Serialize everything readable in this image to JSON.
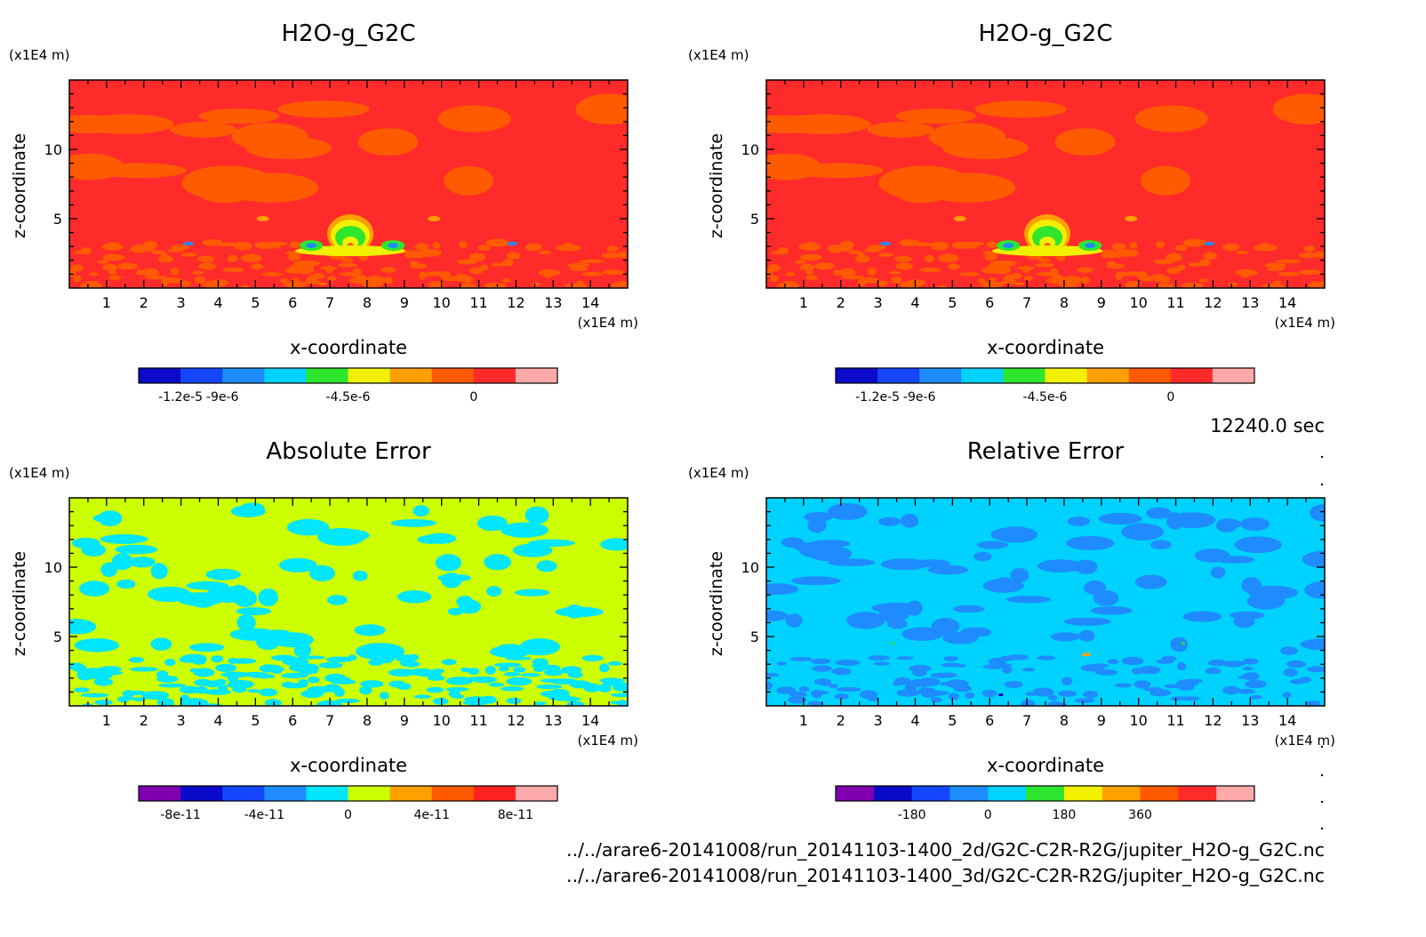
{
  "time_label": "12240.0 sec",
  "files": [
    "../../arare6-20141008/run_20141103-1400_2d/G2C-C2R-R2G/jupiter_H2O-g_G2C.nc",
    "../../arare6-20141008/run_20141103-1400_3d/G2C-C2R-R2G/jupiter_H2O-g_G2C.nc"
  ],
  "chart_data": [
    {
      "type": "heatmap",
      "title": "H2O-g_G2C",
      "xlabel": "x-coordinate",
      "ylabel": "z-coordinate",
      "x_unit": "(x1E4 m)",
      "y_unit": "(x1E4 m)",
      "xlim": [
        0,
        15
      ],
      "ylim": [
        0,
        15
      ],
      "x_ticks": [
        "1",
        "2",
        "3",
        "4",
        "5",
        "6",
        "7",
        "8",
        "9",
        "10",
        "11",
        "12",
        "13",
        "14"
      ],
      "y_ticks": [
        "5",
        "10"
      ],
      "background_color": "#ff2b2b",
      "colorbar": {
        "colors": [
          "#0a0ac8",
          "#1446ff",
          "#1e8cff",
          "#00d2ff",
          "#2ee62e",
          "#f0f000",
          "#ffa000",
          "#ff5a00",
          "#ff2b2b",
          "#ffaaaa"
        ],
        "labels": [
          "-1.2e-5",
          "-9e-6",
          "-4.5e-6",
          "0"
        ]
      }
    },
    {
      "type": "heatmap",
      "title": "H2O-g_G2C",
      "xlabel": "x-coordinate",
      "ylabel": "z-coordinate",
      "x_unit": "(x1E4 m)",
      "y_unit": "(x1E4 m)",
      "xlim": [
        0,
        15
      ],
      "ylim": [
        0,
        15
      ],
      "x_ticks": [
        "1",
        "2",
        "3",
        "4",
        "5",
        "6",
        "7",
        "8",
        "9",
        "10",
        "11",
        "12",
        "13",
        "14"
      ],
      "y_ticks": [
        "5",
        "10"
      ],
      "background_color": "#ff2b2b",
      "colorbar": {
        "colors": [
          "#0a0ac8",
          "#1446ff",
          "#1e8cff",
          "#00d2ff",
          "#2ee62e",
          "#f0f000",
          "#ffa000",
          "#ff5a00",
          "#ff2b2b",
          "#ffaaaa"
        ],
        "labels": [
          "-1.2e-5",
          "-9e-6",
          "-4.5e-6",
          "0"
        ]
      }
    },
    {
      "type": "heatmap",
      "title": "Absolute Error",
      "xlabel": "x-coordinate",
      "ylabel": "z-coordinate",
      "x_unit": "(x1E4 m)",
      "y_unit": "(x1E4 m)",
      "xlim": [
        0,
        15
      ],
      "ylim": [
        0,
        15
      ],
      "x_ticks": [
        "1",
        "2",
        "3",
        "4",
        "5",
        "6",
        "7",
        "8",
        "9",
        "10",
        "11",
        "12",
        "13",
        "14"
      ],
      "y_ticks": [
        "5",
        "10"
      ],
      "background_color": "#ccff00",
      "colorbar": {
        "colors": [
          "#8000b0",
          "#0a0ac8",
          "#1446ff",
          "#1e8cff",
          "#00e6ff",
          "#ccff00",
          "#ffa000",
          "#ff5a00",
          "#ff2020",
          "#ffaaaa"
        ],
        "labels": [
          "-8e-11",
          "-4e-11",
          "0",
          "4e-11",
          "8e-11"
        ]
      }
    },
    {
      "type": "heatmap",
      "title": "Relative Error",
      "xlabel": "x-coordinate",
      "ylabel": "z-coordinate",
      "x_unit": "(x1E4 m)",
      "y_unit": "(x1E4 m)",
      "xlim": [
        0,
        15
      ],
      "ylim": [
        0,
        15
      ],
      "x_ticks": [
        "1",
        "2",
        "3",
        "4",
        "5",
        "6",
        "7",
        "8",
        "9",
        "10",
        "11",
        "12",
        "13",
        "14"
      ],
      "y_ticks": [
        "5",
        "10"
      ],
      "background_color": "#00d2ff",
      "colorbar": {
        "colors": [
          "#8000b0",
          "#0a0ac8",
          "#1446ff",
          "#1e8cff",
          "#00d2ff",
          "#2ee62e",
          "#f0f000",
          "#ffa000",
          "#ff5a00",
          "#ff2b2b",
          "#ffaaaa"
        ],
        "labels": [
          "-180",
          "0",
          "180",
          "360"
        ]
      }
    }
  ]
}
